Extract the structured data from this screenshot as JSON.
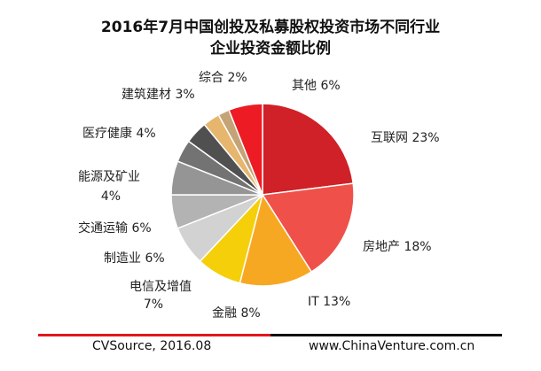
{
  "title_line1": "2016年7月中国创投及私募股权投资市场不同行业",
  "title_line2": "企业投资金额比例",
  "footer": {
    "source": "CVSource, 2016.08",
    "website": "www.ChinaVenture.com.cn"
  },
  "chart_data": {
    "type": "pie",
    "title": "2016年7月中国创投及私募股权投资市场不同行业企业投资金额比例",
    "slices": [
      {
        "label": "互联网",
        "value": 23,
        "display": "互联网 23%",
        "color": "#cf2127"
      },
      {
        "label": "房地产",
        "value": 18,
        "display": "房地产 18%",
        "color": "#f0504a"
      },
      {
        "label": "IT",
        "value": 13,
        "display": "IT 13%",
        "color": "#f7a823"
      },
      {
        "label": "金融",
        "value": 8,
        "display": "金融 8%",
        "color": "#f5cf0a"
      },
      {
        "label": "电信及增值",
        "value": 7,
        "display": [
          "电信及增值",
          "7%"
        ],
        "color": "#d2d2d2"
      },
      {
        "label": "制造业",
        "value": 6,
        "display": "制造业 6%",
        "color": "#b3b3b3"
      },
      {
        "label": "交通运输",
        "value": 6,
        "display": "交通运输 6%",
        "color": "#959595"
      },
      {
        "label": "能源及矿业",
        "value": 4,
        "display": [
          "能源及矿业",
          "4%"
        ],
        "color": "#737373"
      },
      {
        "label": "医疗健康",
        "value": 4,
        "display": "医疗健康 4%",
        "color": "#505050"
      },
      {
        "label": "建筑建材",
        "value": 3,
        "display": "建筑建材 3%",
        "color": "#e6b66e"
      },
      {
        "label": "综合",
        "value": 2,
        "display": "综合 2%",
        "color": "#c4a477"
      },
      {
        "label": "其他",
        "value": 6,
        "display": "其他 6%",
        "color": "#ed1c24"
      }
    ]
  }
}
